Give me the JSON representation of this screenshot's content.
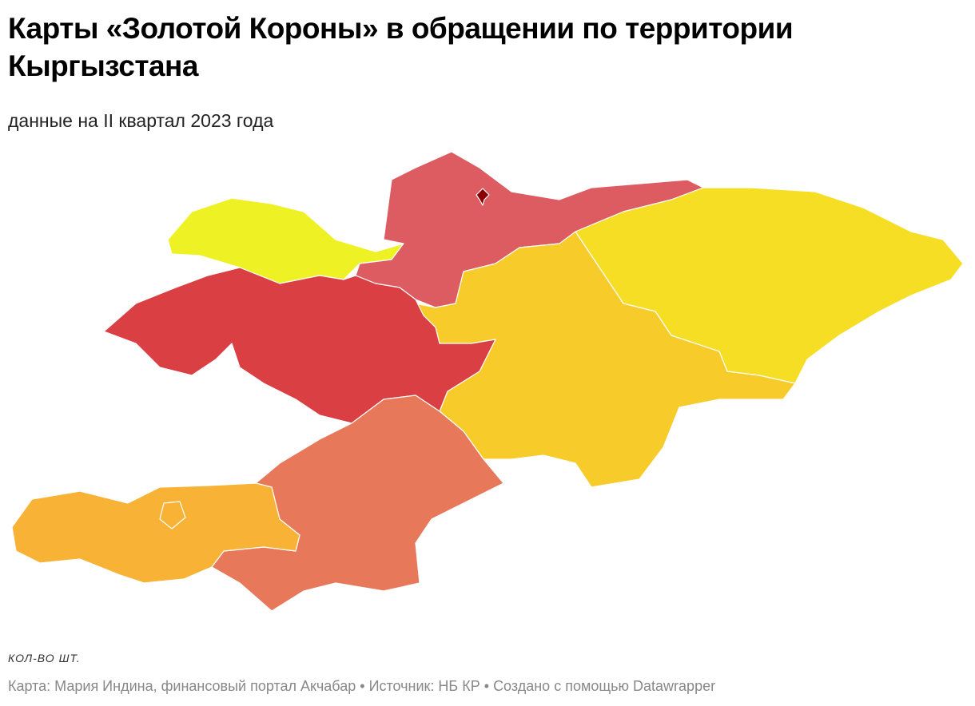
{
  "header": {
    "title": "Карты «Золотой Короны» в обращении по территории Кыргызстана",
    "subtitle": "данные на II квартал 2023 года"
  },
  "map": {
    "regions": [
      {
        "color": "#eef224"
      },
      {
        "color": "#dd5c62"
      },
      {
        "color": "#f5de24"
      },
      {
        "color": "#f7cb2a"
      },
      {
        "color": "#d93f43"
      },
      {
        "color": "#e8785a"
      },
      {
        "color": "#f8b236"
      },
      {
        "color": "#8b0000"
      }
    ]
  },
  "legend": {
    "title": "КОЛ-ВО ШТ."
  },
  "footer": {
    "credit": "Карта: Мария Индина, финансовый портал Акчабар",
    "source": "Источник: НБ КР",
    "tool": "Создано с помощью Datawrapper"
  }
}
